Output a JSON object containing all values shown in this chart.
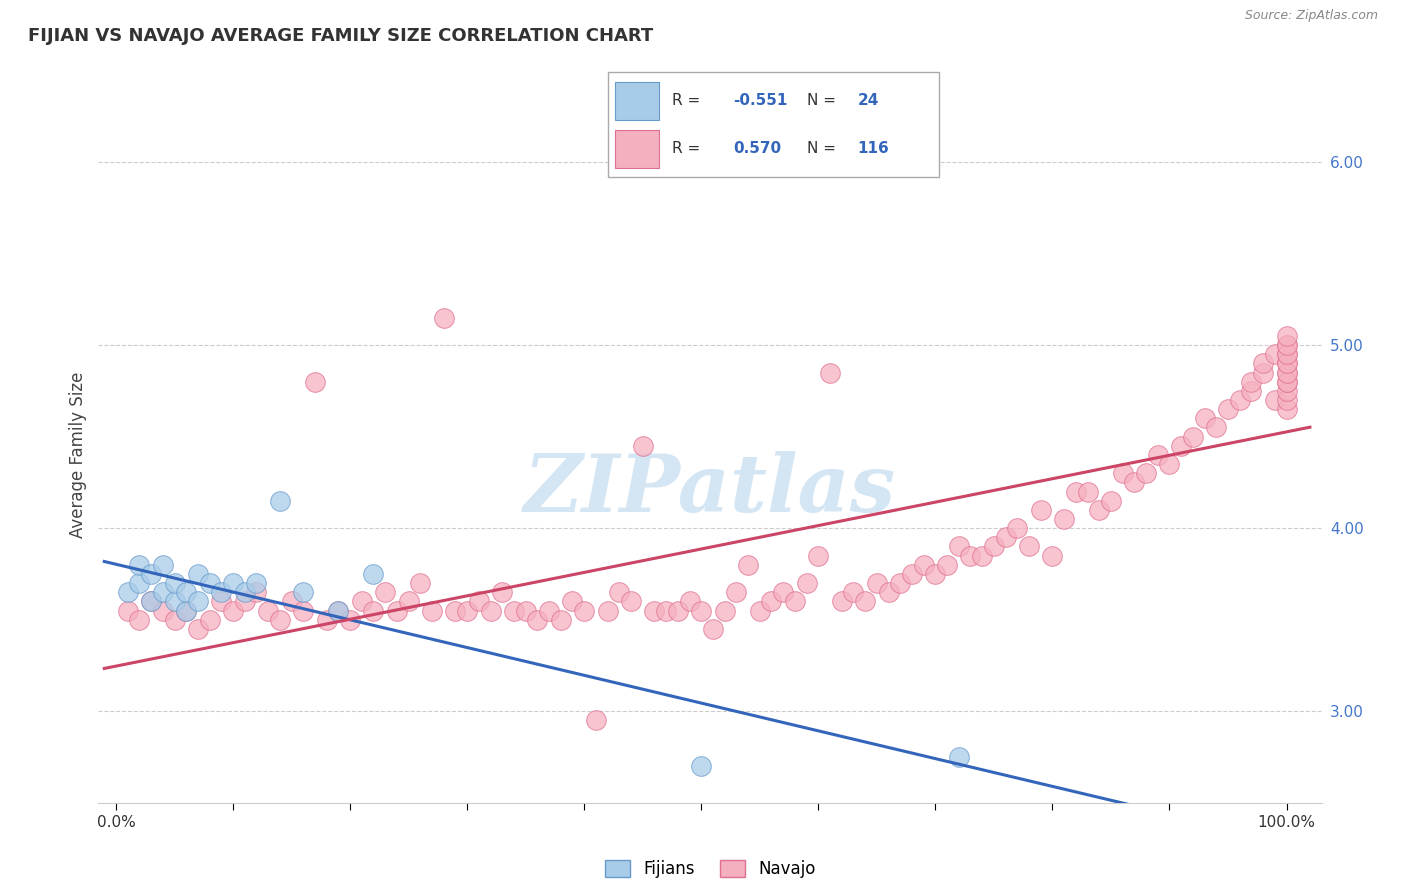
{
  "title": "FIJIAN VS NAVAJO AVERAGE FAMILY SIZE CORRELATION CHART",
  "source_text": "Source: ZipAtlas.com",
  "ylabel": "Average Family Size",
  "xmin": 0.0,
  "xmax": 1.0,
  "ymin": 2.5,
  "ymax": 6.3,
  "yticks": [
    3.0,
    4.0,
    5.0,
    6.0
  ],
  "fijian_color": "#a8cce8",
  "navajo_color": "#f5b0c0",
  "fijian_edge": "#6699cc",
  "navajo_edge": "#e07090",
  "trend_fijian_color": "#3366bb",
  "trend_navajo_color": "#cc4466",
  "R_fijian": -0.551,
  "N_fijian": 24,
  "R_navajo": 0.57,
  "N_navajo": 116,
  "watermark": "ZIPatlas",
  "watermark_color": "#b8d4ee",
  "background_color": "#ffffff",
  "legend_label_fijian": "Fijians",
  "legend_label_navajo": "Navajo",
  "fijian_x": [
    0.01,
    0.02,
    0.02,
    0.03,
    0.03,
    0.04,
    0.04,
    0.05,
    0.05,
    0.06,
    0.06,
    0.07,
    0.07,
    0.08,
    0.09,
    0.1,
    0.11,
    0.12,
    0.14,
    0.16,
    0.19,
    0.22,
    0.5,
    0.72
  ],
  "fijian_y": [
    3.65,
    3.7,
    3.8,
    3.6,
    3.75,
    3.65,
    3.8,
    3.6,
    3.7,
    3.55,
    3.65,
    3.6,
    3.75,
    3.7,
    3.65,
    3.7,
    3.65,
    3.7,
    4.15,
    3.65,
    3.55,
    3.75,
    2.7,
    2.75
  ],
  "navajo_x": [
    0.01,
    0.02,
    0.03,
    0.04,
    0.05,
    0.06,
    0.07,
    0.08,
    0.09,
    0.1,
    0.11,
    0.12,
    0.13,
    0.14,
    0.15,
    0.16,
    0.17,
    0.18,
    0.19,
    0.2,
    0.21,
    0.22,
    0.23,
    0.24,
    0.25,
    0.26,
    0.27,
    0.28,
    0.29,
    0.3,
    0.31,
    0.32,
    0.33,
    0.34,
    0.35,
    0.36,
    0.37,
    0.38,
    0.39,
    0.4,
    0.41,
    0.42,
    0.43,
    0.44,
    0.45,
    0.46,
    0.47,
    0.48,
    0.49,
    0.5,
    0.51,
    0.52,
    0.53,
    0.54,
    0.55,
    0.56,
    0.57,
    0.58,
    0.59,
    0.6,
    0.61,
    0.62,
    0.63,
    0.64,
    0.65,
    0.66,
    0.67,
    0.68,
    0.69,
    0.7,
    0.71,
    0.72,
    0.73,
    0.74,
    0.75,
    0.76,
    0.77,
    0.78,
    0.79,
    0.8,
    0.81,
    0.82,
    0.83,
    0.84,
    0.85,
    0.86,
    0.87,
    0.88,
    0.89,
    0.9,
    0.91,
    0.92,
    0.93,
    0.94,
    0.95,
    0.96,
    0.97,
    0.97,
    0.98,
    0.98,
    0.99,
    0.99,
    1.0,
    1.0,
    1.0,
    1.0,
    1.0,
    1.0,
    1.0,
    1.0,
    1.0,
    1.0,
    1.0,
    1.0,
    1.0,
    1.0
  ],
  "navajo_y": [
    3.55,
    3.5,
    3.6,
    3.55,
    3.5,
    3.55,
    3.45,
    3.5,
    3.6,
    3.55,
    3.6,
    3.65,
    3.55,
    3.5,
    3.6,
    3.55,
    4.8,
    3.5,
    3.55,
    3.5,
    3.6,
    3.55,
    3.65,
    3.55,
    3.6,
    3.7,
    3.55,
    5.15,
    3.55,
    3.55,
    3.6,
    3.55,
    3.65,
    3.55,
    3.55,
    3.5,
    3.55,
    3.5,
    3.6,
    3.55,
    2.95,
    3.55,
    3.65,
    3.6,
    4.45,
    3.55,
    3.55,
    3.55,
    3.6,
    3.55,
    3.45,
    3.55,
    3.65,
    3.8,
    3.55,
    3.6,
    3.65,
    3.6,
    3.7,
    3.85,
    4.85,
    3.6,
    3.65,
    3.6,
    3.7,
    3.65,
    3.7,
    3.75,
    3.8,
    3.75,
    3.8,
    3.9,
    3.85,
    3.85,
    3.9,
    3.95,
    4.0,
    3.9,
    4.1,
    3.85,
    4.05,
    4.2,
    4.2,
    4.1,
    4.15,
    4.3,
    4.25,
    4.3,
    4.4,
    4.35,
    4.45,
    4.5,
    4.6,
    4.55,
    4.65,
    4.7,
    4.75,
    4.8,
    4.85,
    4.9,
    4.95,
    4.7,
    4.65,
    4.7,
    4.75,
    4.8,
    4.85,
    4.9,
    4.95,
    5.0,
    4.8,
    4.85,
    4.9,
    4.95,
    5.0,
    5.05
  ]
}
